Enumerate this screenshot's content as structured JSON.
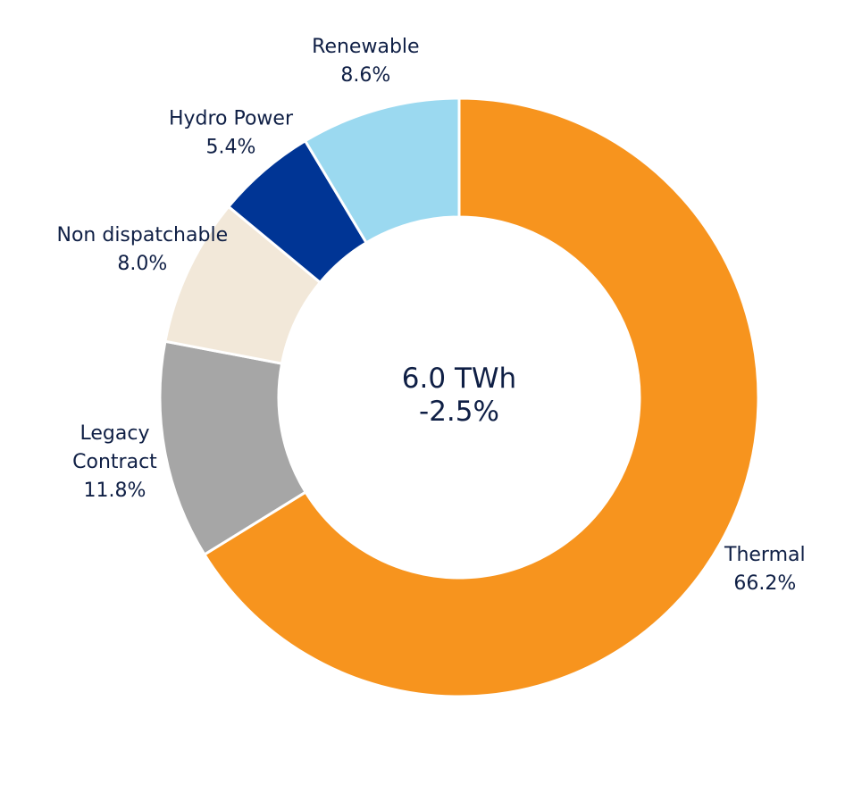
{
  "chart_data": {
    "type": "pie",
    "variant": "donut",
    "center_text": [
      "6.0 TWh",
      "-2.5%"
    ],
    "slices": [
      {
        "label": [
          "Thermal"
        ],
        "value_label": "66.2%",
        "value": 66.2,
        "color": "#f7941e"
      },
      {
        "label": [
          "Legacy",
          "Contract"
        ],
        "value_label": "11.8%",
        "value": 11.8,
        "color": "#a6a6a6"
      },
      {
        "label": [
          "Non dispatchable"
        ],
        "value_label": "8.0%",
        "value": 8.0,
        "color": "#f2e8d9"
      },
      {
        "label": [
          "Hydro Power"
        ],
        "value_label": "5.4%",
        "value": 5.4,
        "color": "#003595"
      },
      {
        "label": [
          "Renewable"
        ],
        "value_label": "8.6%",
        "value": 8.6,
        "color": "#9bd9f0"
      }
    ]
  }
}
